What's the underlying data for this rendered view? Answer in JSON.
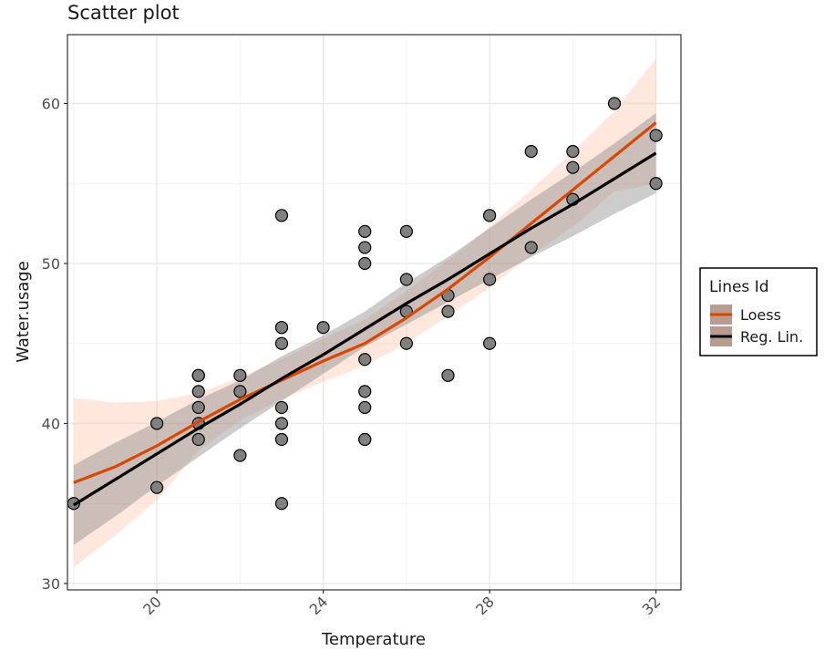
{
  "chart_data": {
    "type": "scatter",
    "title": "Scatter plot",
    "xlabel": "Temperature",
    "ylabel": "Water.usage",
    "xlim": [
      17.85,
      32.6
    ],
    "ylim": [
      29.6,
      64.3
    ],
    "x_ticks": [
      20,
      24,
      28,
      32
    ],
    "y_ticks": [
      30,
      40,
      50,
      60
    ],
    "x_tick_labels": [
      "20",
      "24",
      "28",
      "32"
    ],
    "y_tick_labels": [
      "30",
      "40",
      "50",
      "60"
    ],
    "grid": true,
    "legend": {
      "title": "Lines Id",
      "position": "right",
      "entries": [
        {
          "label": "Loess",
          "color": "#d94801"
        },
        {
          "label": "Reg. Lin.",
          "color": "#000000"
        }
      ]
    },
    "points": {
      "x": [
        18,
        20,
        20,
        21,
        21,
        21,
        21,
        21,
        21,
        22,
        22,
        22,
        23,
        23,
        23,
        23,
        23,
        23,
        23,
        23,
        24,
        25,
        25,
        25,
        25,
        25,
        25,
        25,
        25,
        26,
        26,
        26,
        26,
        27,
        27,
        27,
        28,
        28,
        28,
        29,
        29,
        30,
        30,
        30,
        31,
        32,
        32
      ],
      "y": [
        35,
        40,
        36,
        43,
        43,
        42,
        41,
        40,
        39,
        43,
        42,
        38,
        53,
        46,
        46,
        45,
        41,
        40,
        39,
        35,
        46,
        52,
        51,
        50,
        44,
        42,
        41,
        39,
        39,
        52,
        49,
        47,
        45,
        48,
        47,
        43,
        53,
        49,
        45,
        57,
        51,
        57,
        56,
        54,
        60,
        58,
        55
      ],
      "fill": "#808080",
      "stroke": "#000000"
    },
    "series": [
      {
        "name": "Loess",
        "color": "#d94801",
        "band_color": "#fdae8b",
        "x": [
          18,
          19,
          20,
          21,
          22,
          23,
          24,
          25,
          26,
          27,
          28,
          29,
          30,
          31,
          32
        ],
        "y": [
          36.3,
          37.3,
          38.6,
          40.1,
          41.5,
          42.7,
          43.9,
          45.0,
          46.6,
          48.4,
          50.4,
          52.5,
          54.6,
          56.7,
          58.8
        ],
        "lower": [
          31.0,
          33.0,
          35.2,
          38.3,
          40.2,
          41.5,
          42.6,
          43.6,
          45.0,
          46.7,
          48.5,
          50.5,
          52.3,
          54.5,
          55.0
        ],
        "upper": [
          41.6,
          41.3,
          41.4,
          41.9,
          42.9,
          44.0,
          45.3,
          46.5,
          48.3,
          50.2,
          52.3,
          54.6,
          57.0,
          59.5,
          62.8
        ]
      },
      {
        "name": "Reg. Lin.",
        "color": "#000000",
        "band_color": "#7f7f7f",
        "x": [
          18,
          19,
          20,
          21,
          22,
          23,
          24,
          25,
          26,
          27,
          28,
          29,
          30,
          31,
          32
        ],
        "y": [
          34.9,
          36.5,
          38.1,
          39.7,
          41.2,
          42.8,
          44.3,
          45.9,
          47.5,
          49.0,
          50.6,
          52.2,
          53.7,
          55.3,
          56.9
        ],
        "lower": [
          32.4,
          34.2,
          36.1,
          37.9,
          39.7,
          41.4,
          43.1,
          44.8,
          46.2,
          47.6,
          49.0,
          50.4,
          51.7,
          53.1,
          54.4
        ],
        "upper": [
          37.4,
          38.8,
          40.1,
          41.5,
          42.7,
          44.2,
          45.5,
          47.0,
          48.8,
          50.4,
          52.2,
          54.0,
          55.7,
          57.5,
          59.4
        ]
      }
    ]
  }
}
